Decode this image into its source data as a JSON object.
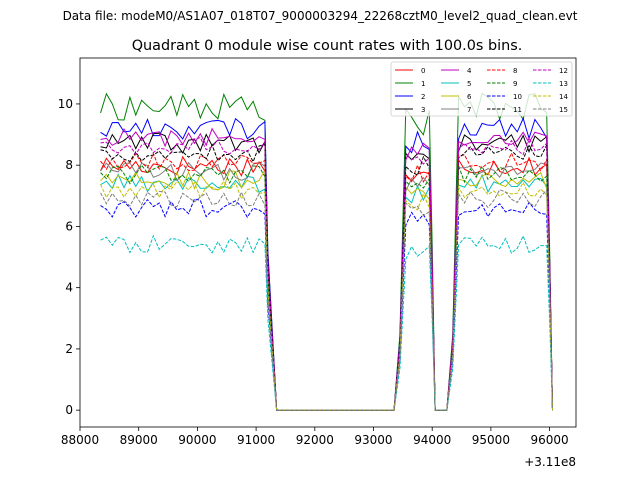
{
  "header": {
    "data_file": "Data file: modeM0/AS1A07_018T07_9000003294_22268cztM0_level2_quad_clean.evt"
  },
  "chart_data": {
    "type": "line",
    "title": "Quadrant 0 module wise count rates with 100.0s bins.",
    "xlabel": "",
    "ylabel": "",
    "x_offset_label": "+3.11e8",
    "xlim": [
      88000,
      96450
    ],
    "ylim": [
      -0.55,
      11.5
    ],
    "x_ticks": [
      88000,
      89000,
      90000,
      91000,
      92000,
      93000,
      94000,
      95000,
      96000
    ],
    "x_tick_labels": [
      "88000",
      "89000",
      "90000",
      "91000",
      "92000",
      "93000",
      "94000",
      "95000",
      "96000"
    ],
    "y_ticks": [
      0,
      2,
      4,
      6,
      8,
      10
    ],
    "y_tick_labels": [
      "0",
      "2",
      "4",
      "6",
      "8",
      "10"
    ],
    "legend_position": "top-right",
    "segments": [
      {
        "start": 88350,
        "end": 91150,
        "down_to": 91350
      },
      {
        "start": 93550,
        "end": 93950,
        "up_from": 93350,
        "down_to": 94050
      },
      {
        "start": 94450,
        "end": 95950,
        "up_from": 94250,
        "down_to": 96050
      }
    ],
    "series": [
      {
        "name": "0",
        "color": "#ff0000",
        "dash": "solid",
        "level": 8.0,
        "noise": 0.35
      },
      {
        "name": "1",
        "color": "#008000",
        "dash": "solid",
        "level": 9.9,
        "noise": 0.45
      },
      {
        "name": "2",
        "color": "#0000ff",
        "dash": "solid",
        "level": 9.2,
        "noise": 0.35
      },
      {
        "name": "3",
        "color": "#000000",
        "dash": "solid",
        "level": 8.7,
        "noise": 0.35
      },
      {
        "name": "4",
        "color": "#bf00bf",
        "dash": "solid",
        "level": 8.9,
        "noise": 0.3
      },
      {
        "name": "5",
        "color": "#00bfbf",
        "dash": "solid",
        "level": 7.4,
        "noise": 0.3
      },
      {
        "name": "6",
        "color": "#bfbf00",
        "dash": "solid",
        "level": 7.5,
        "noise": 0.35
      },
      {
        "name": "7",
        "color": "#808080",
        "dash": "solid",
        "level": 7.8,
        "noise": 0.3
      },
      {
        "name": "8",
        "color": "#ff0000",
        "dash": "dashed",
        "level": 8.1,
        "noise": 0.3
      },
      {
        "name": "9",
        "color": "#008000",
        "dash": "dashed",
        "level": 7.7,
        "noise": 0.3
      },
      {
        "name": "10",
        "color": "#0000ff",
        "dash": "dashed",
        "level": 6.6,
        "noise": 0.3
      },
      {
        "name": "11",
        "color": "#000000",
        "dash": "dashed",
        "level": 8.4,
        "noise": 0.3
      },
      {
        "name": "12",
        "color": "#bf00bf",
        "dash": "dashed",
        "level": 8.6,
        "noise": 0.3
      },
      {
        "name": "13",
        "color": "#00bfbf",
        "dash": "dashed",
        "level": 5.4,
        "noise": 0.3
      },
      {
        "name": "14",
        "color": "#bfbf00",
        "dash": "dashed",
        "level": 7.2,
        "noise": 0.3
      },
      {
        "name": "15",
        "color": "#808080",
        "dash": "dashed",
        "level": 6.9,
        "noise": 0.3
      }
    ]
  }
}
